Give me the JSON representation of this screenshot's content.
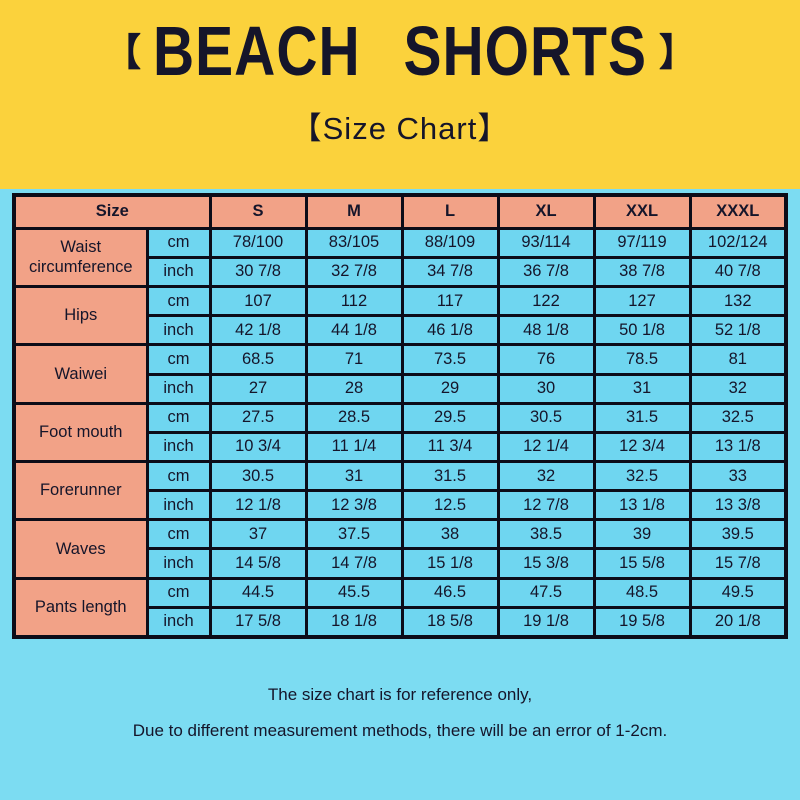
{
  "header": {
    "bracket_left": "【",
    "bracket_right": "】",
    "title": "BEACH SHORTS",
    "subtitle": "【Size Chart】"
  },
  "chart_data": {
    "type": "table",
    "title": "BEACH SHORTS Size Chart",
    "size_header": "Size",
    "size_columns": [
      "S",
      "M",
      "L",
      "XL",
      "XXL",
      "XXXL"
    ],
    "unit_labels": {
      "cm": "cm",
      "inch": "inch"
    },
    "measurements": [
      {
        "label": "Waist circumference",
        "cm": [
          "78/100",
          "83/105",
          "88/109",
          "93/114",
          "97/119",
          "102/124"
        ],
        "inch": [
          "30 7/8",
          "32 7/8",
          "34 7/8",
          "36 7/8",
          "38 7/8",
          "40 7/8"
        ]
      },
      {
        "label": "Hips",
        "cm": [
          "107",
          "112",
          "117",
          "122",
          "127",
          "132"
        ],
        "inch": [
          "42 1/8",
          "44 1/8",
          "46 1/8",
          "48 1/8",
          "50 1/8",
          "52 1/8"
        ]
      },
      {
        "label": "Waiwei",
        "cm": [
          "68.5",
          "71",
          "73.5",
          "76",
          "78.5",
          "81"
        ],
        "inch": [
          "27",
          "28",
          "29",
          "30",
          "31",
          "32"
        ]
      },
      {
        "label": "Foot mouth",
        "cm": [
          "27.5",
          "28.5",
          "29.5",
          "30.5",
          "31.5",
          "32.5"
        ],
        "inch": [
          "10 3/4",
          "11 1/4",
          "11 3/4",
          "12 1/4",
          "12 3/4",
          "13 1/8"
        ]
      },
      {
        "label": "Forerunner",
        "cm": [
          "30.5",
          "31",
          "31.5",
          "32",
          "32.5",
          "33"
        ],
        "inch": [
          "12 1/8",
          "12 3/8",
          "12.5",
          "12 7/8",
          "13 1/8",
          "13 3/8"
        ]
      },
      {
        "label": "Waves",
        "cm": [
          "37",
          "37.5",
          "38",
          "38.5",
          "39",
          "39.5"
        ],
        "inch": [
          "14 5/8",
          "14 7/8",
          "15 1/8",
          "15 3/8",
          "15 5/8",
          "15 7/8"
        ]
      },
      {
        "label": "Pants length",
        "cm": [
          "44.5",
          "45.5",
          "46.5",
          "47.5",
          "48.5",
          "49.5"
        ],
        "inch": [
          "17 5/8",
          "18 1/8",
          "18 5/8",
          "19 1/8",
          "19 5/8",
          "20 1/8"
        ]
      }
    ]
  },
  "footer": {
    "line1": "The size chart is for reference only,",
    "line2": "Due to different measurement methods, there will be an error of 1-2cm."
  },
  "colors": {
    "banner_yellow": "#FBD23C",
    "cell_salmon": "#F2A287",
    "cell_cyan": "#6FD6F0",
    "background_cyan": "#7CDCF2",
    "border": "#0C0C18",
    "text": "#15152A"
  }
}
